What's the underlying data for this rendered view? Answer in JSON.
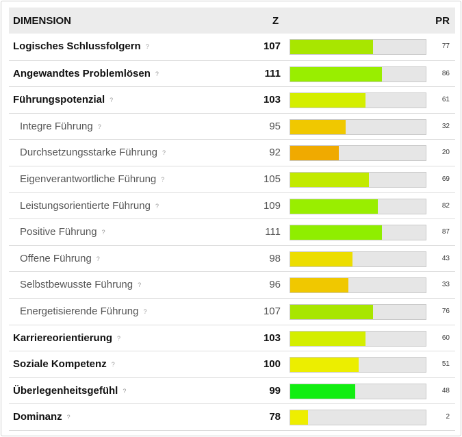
{
  "header": {
    "dimension": "DIMENSION",
    "z": "Z",
    "pr": "PR"
  },
  "help_mark": "?",
  "rows": [
    {
      "label": "Logisches Schlussfolgern",
      "z": "107",
      "pr": "77",
      "level": "main",
      "fill_fraction": 0.61,
      "color": "#a8e600"
    },
    {
      "label": "Angewandtes Problemlösen",
      "z": "111",
      "pr": "86",
      "level": "main",
      "fill_fraction": 0.675,
      "color": "#99ee00"
    },
    {
      "label": "Führungspotenzial",
      "z": "103",
      "pr": "61",
      "level": "main",
      "fill_fraction": 0.555,
      "color": "#d4ee00"
    },
    {
      "label": "Integre Führung",
      "z": "95",
      "pr": "32",
      "level": "sub",
      "fill_fraction": 0.41,
      "color": "#f0c800"
    },
    {
      "label": "Durchsetzungsstarke Führung",
      "z": "92",
      "pr": "20",
      "level": "sub",
      "fill_fraction": 0.36,
      "color": "#f0aa00"
    },
    {
      "label": "Eigenverantwortliche Führung",
      "z": "105",
      "pr": "69",
      "level": "sub",
      "fill_fraction": 0.58,
      "color": "#c2ea00"
    },
    {
      "label": "Leistungsorientierte Führung",
      "z": "109",
      "pr": "82",
      "level": "sub",
      "fill_fraction": 0.645,
      "color": "#99ee00"
    },
    {
      "label": "Positive Führung",
      "z": "111",
      "pr": "87",
      "level": "sub",
      "fill_fraction": 0.675,
      "color": "#8fee00"
    },
    {
      "label": "Offene Führung",
      "z": "98",
      "pr": "43",
      "level": "sub",
      "fill_fraction": 0.46,
      "color": "#ecdd00"
    },
    {
      "label": "Selbstbewusste Führung",
      "z": "96",
      "pr": "33",
      "level": "sub",
      "fill_fraction": 0.43,
      "color": "#f0c800"
    },
    {
      "label": "Energetisierende Führung",
      "z": "107",
      "pr": "76",
      "level": "sub",
      "fill_fraction": 0.61,
      "color": "#a8e600"
    },
    {
      "label": "Karriereorientierung",
      "z": "103",
      "pr": "60",
      "level": "main",
      "fill_fraction": 0.555,
      "color": "#d4ee00"
    },
    {
      "label": "Soziale Kompetenz",
      "z": "100",
      "pr": "51",
      "level": "main",
      "fill_fraction": 0.505,
      "color": "#ecee00"
    },
    {
      "label": "Überlegenheitsgefühl",
      "z": "99",
      "pr": "48",
      "level": "main",
      "fill_fraction": 0.48,
      "color": "#11ee11"
    },
    {
      "label": "Dominanz",
      "z": "78",
      "pr": "2",
      "level": "main",
      "fill_fraction": 0.13,
      "color": "#eeee00"
    }
  ]
}
